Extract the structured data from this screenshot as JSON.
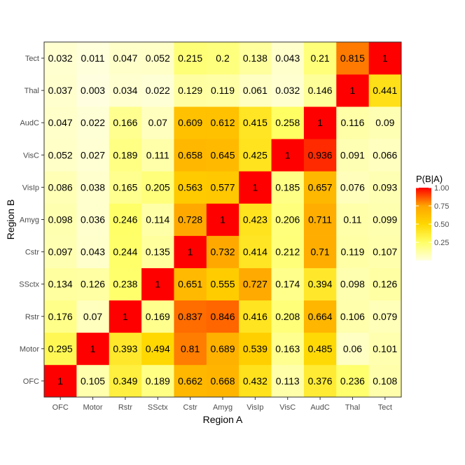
{
  "chart_data": {
    "type": "heatmap",
    "xlabel": "Region A",
    "ylabel": "Region B",
    "x_categories": [
      "OFC",
      "Motor",
      "Rstr",
      "SSctx",
      "Cstr",
      "Amyg",
      "VisIp",
      "VisC",
      "AudC",
      "Thal",
      "Tect"
    ],
    "y_categories": [
      "OFC",
      "Motor",
      "Rstr",
      "SSctx",
      "Cstr",
      "Amyg",
      "VisIp",
      "VisC",
      "AudC",
      "Thal",
      "Tect"
    ],
    "values": [
      [
        "1",
        "0.105",
        "0.349",
        "0.189",
        "0.662",
        "0.668",
        "0.432",
        "0.113",
        "0.376",
        "0.236",
        "0.108"
      ],
      [
        "0.295",
        "1",
        "0.393",
        "0.494",
        "0.81",
        "0.689",
        "0.539",
        "0.163",
        "0.485",
        "0.06",
        "0.101"
      ],
      [
        "0.176",
        "0.07",
        "1",
        "0.169",
        "0.837",
        "0.846",
        "0.416",
        "0.208",
        "0.664",
        "0.106",
        "0.079"
      ],
      [
        "0.134",
        "0.126",
        "0.238",
        "1",
        "0.651",
        "0.555",
        "0.727",
        "0.174",
        "0.394",
        "0.098",
        "0.126"
      ],
      [
        "0.097",
        "0.043",
        "0.244",
        "0.135",
        "1",
        "0.732",
        "0.414",
        "0.212",
        "0.71",
        "0.119",
        "0.107"
      ],
      [
        "0.098",
        "0.036",
        "0.246",
        "0.114",
        "0.728",
        "1",
        "0.423",
        "0.206",
        "0.711",
        "0.11",
        "0.099"
      ],
      [
        "0.086",
        "0.038",
        "0.165",
        "0.205",
        "0.563",
        "0.577",
        "1",
        "0.185",
        "0.657",
        "0.076",
        "0.093"
      ],
      [
        "0.052",
        "0.027",
        "0.189",
        "0.111",
        "0.658",
        "0.645",
        "0.425",
        "1",
        "0.936",
        "0.091",
        "0.066"
      ],
      [
        "0.047",
        "0.022",
        "0.166",
        "0.07",
        "0.609",
        "0.612",
        "0.415",
        "0.258",
        "1",
        "0.116",
        "0.09"
      ],
      [
        "0.037",
        "0.003",
        "0.034",
        "0.022",
        "0.129",
        "0.119",
        "0.061",
        "0.032",
        "0.146",
        "1",
        "0.441"
      ],
      [
        "0.032",
        "0.011",
        "0.047",
        "0.052",
        "0.215",
        "0.2",
        "0.138",
        "0.043",
        "0.21",
        "0.815",
        "1"
      ]
    ],
    "legend": {
      "title": "P(B|A)",
      "ticks": [
        "0.25",
        "0.50",
        "0.75",
        "1.00"
      ],
      "tick_values": [
        0.25,
        0.5,
        0.75,
        1.0
      ],
      "range": [
        0,
        1
      ],
      "colors": [
        "#ffffe0",
        "#ffff66",
        "#ffd700",
        "#ffa500",
        "#ff0000"
      ]
    },
    "grid": false,
    "legend_position": "right"
  }
}
